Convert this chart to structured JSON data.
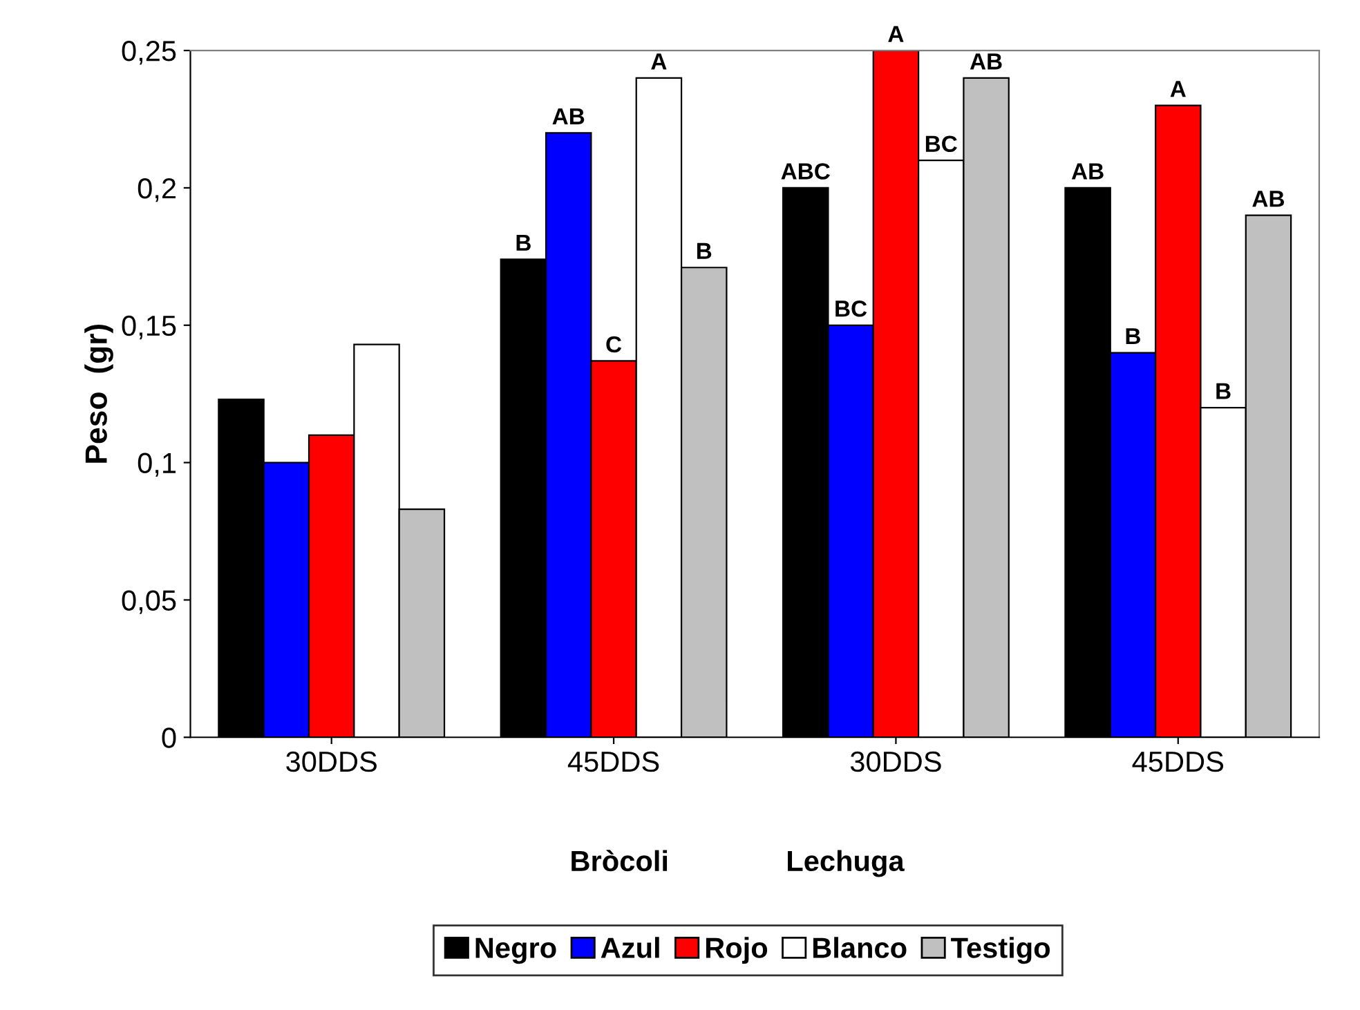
{
  "chart_data": {
    "type": "bar",
    "ylabel": "Peso  (gr)",
    "categories": [
      "30DDS",
      "45DDS",
      "30DDS",
      "45DDS"
    ],
    "series": [
      {
        "name": "Negro",
        "color": "#000000",
        "values": [
          0.123,
          0.174,
          0.2,
          0.2
        ],
        "value_labels": [
          null,
          "B",
          "ABC",
          "AB"
        ]
      },
      {
        "name": "Azul",
        "color": "#0000ff",
        "values": [
          0.1,
          0.22,
          0.15,
          0.14
        ],
        "value_labels": [
          null,
          "AB",
          "BC",
          "B"
        ]
      },
      {
        "name": "Rojo",
        "color": "#ff0000",
        "values": [
          0.11,
          0.137,
          0.25,
          0.23
        ],
        "value_labels": [
          null,
          "C",
          "A",
          "A"
        ]
      },
      {
        "name": "Blanco",
        "color": "#ffffff",
        "values": [
          0.143,
          0.24,
          0.21,
          0.12
        ],
        "value_labels": [
          null,
          "A",
          "BC",
          "B"
        ]
      },
      {
        "name": "Testigo",
        "color": "#c0c0c0",
        "values": [
          0.083,
          0.171,
          0.24,
          0.19
        ],
        "value_labels": [
          null,
          "B",
          "AB",
          "AB"
        ]
      }
    ],
    "ylim": [
      0,
      0.25
    ],
    "yticks": [
      0,
      {
        "value": 0.05,
        "label": "0,05"
      },
      {
        "value": 0.1,
        "label": "0,1"
      },
      {
        "value": 0.15,
        "label": "0,15"
      },
      {
        "value": 0.2,
        "label": "0,2"
      },
      {
        "value": 0.25,
        "label": "0,25"
      }
    ],
    "annotations": [
      "Bròcoli",
      "Lechuga"
    ],
    "grid": false,
    "legend": "bottom"
  }
}
